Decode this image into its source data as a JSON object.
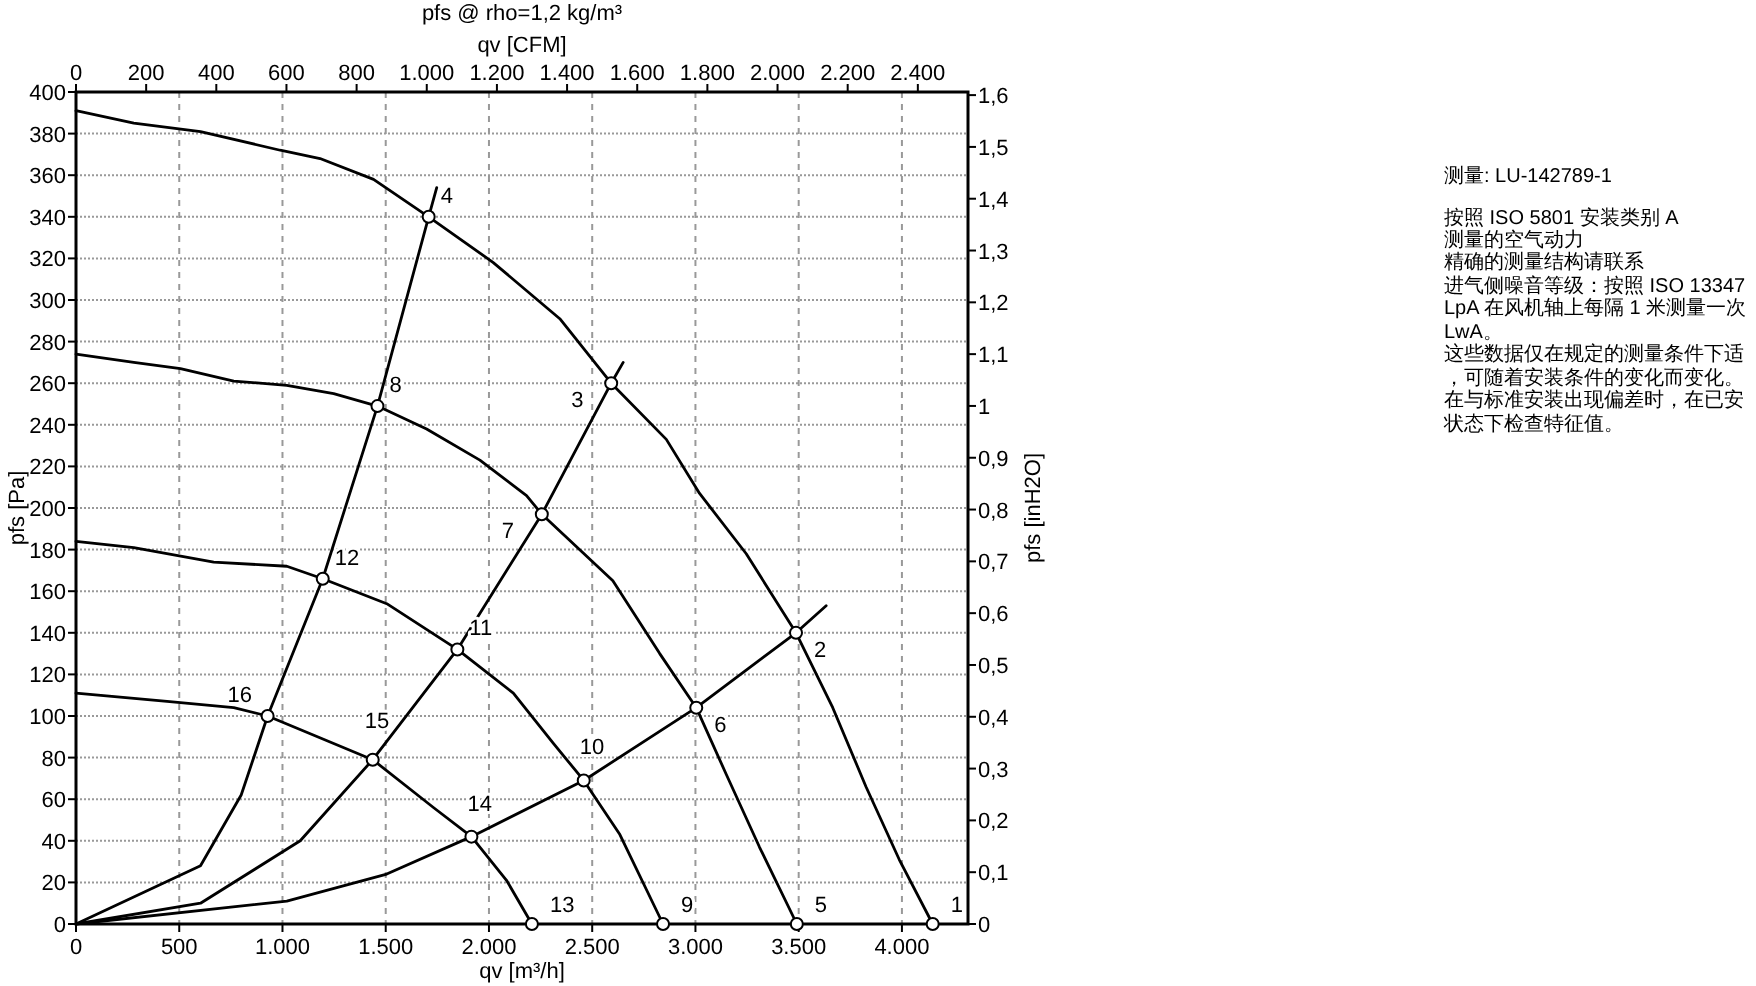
{
  "chart_data": {
    "type": "line",
    "title": "pfs @ rho=1,2 kg/m³",
    "xlabel": "qv [m³/h]",
    "x2label": "qv [CFM]",
    "ylabel": "pfs [Pa]",
    "y2label": "pfs [inH2O]",
    "xlim": [
      0,
      4320
    ],
    "ylim": [
      0,
      400
    ],
    "x2lim": [
      0,
      2543
    ],
    "y2lim": [
      0,
      1.606
    ],
    "xticks": [
      0,
      500,
      {
        "value": 1000,
        "label": "1.000"
      },
      {
        "value": 1500,
        "label": "1.500"
      },
      {
        "value": 2000,
        "label": "2.000"
      },
      {
        "value": 2500,
        "label": "2.500"
      },
      {
        "value": 3000,
        "label": "3.000"
      },
      {
        "value": 3500,
        "label": "3.500"
      },
      {
        "value": 4000,
        "label": "4.000"
      }
    ],
    "x2ticks": [
      0,
      200,
      400,
      600,
      800,
      {
        "value": 1000,
        "label": "1.000"
      },
      {
        "value": 1200,
        "label": "1.200"
      },
      {
        "value": 1400,
        "label": "1.400"
      },
      {
        "value": 1600,
        "label": "1.600"
      },
      {
        "value": 1800,
        "label": "1.800"
      },
      {
        "value": 2000,
        "label": "2.000"
      },
      {
        "value": 2200,
        "label": "2.200"
      },
      {
        "value": 2400,
        "label": "2.400"
      }
    ],
    "yticks": [
      0,
      20,
      40,
      60,
      80,
      100,
      120,
      140,
      160,
      180,
      200,
      220,
      240,
      260,
      280,
      300,
      320,
      340,
      360,
      380,
      400
    ],
    "y2ticks": [
      0,
      {
        "value": 0.1,
        "label": "0,1"
      },
      {
        "value": 0.2,
        "label": "0,2"
      },
      {
        "value": 0.3,
        "label": "0,3"
      },
      {
        "value": 0.4,
        "label": "0,4"
      },
      {
        "value": 0.5,
        "label": "0,5"
      },
      {
        "value": 0.6,
        "label": "0,6"
      },
      {
        "value": 0.7,
        "label": "0,7"
      },
      {
        "value": 0.8,
        "label": "0,8"
      },
      {
        "value": 0.9,
        "label": "0,9"
      },
      1,
      {
        "value": 1.1,
        "label": "1,1"
      },
      {
        "value": 1.2,
        "label": "1,2"
      },
      {
        "value": 1.3,
        "label": "1,3"
      },
      {
        "value": 1.4,
        "label": "1,4"
      },
      {
        "value": 1.5,
        "label": "1,5"
      },
      {
        "value": 1.6,
        "label": "1,6"
      }
    ],
    "grid": true,
    "marker": "none",
    "line_style": "solid",
    "series": [
      {
        "color": "#000000",
        "x": [
          0,
          280,
          603,
          989,
          1182,
          1441,
          1708,
          2021,
          2343,
          2592,
          2859,
          3020,
          3246,
          3487,
          3665,
          3826,
          3987,
          4149
        ],
        "values": [
          391,
          385,
          381,
          372,
          368,
          358,
          340,
          318,
          291,
          260,
          233,
          207,
          178,
          140,
          104,
          66,
          31,
          0
        ]
      },
      {
        "color": "#000000",
        "x": [
          0,
          280,
          506,
          764,
          1021,
          1248,
          1460,
          1698,
          1956,
          2182,
          2256,
          2600,
          2827,
          3004,
          3149,
          3310,
          3491
        ],
        "values": [
          274,
          270,
          267,
          261,
          259,
          255,
          249,
          238,
          223,
          206,
          197,
          165,
          130,
          104,
          72,
          37,
          0
        ]
      },
      {
        "color": "#000000",
        "x": [
          0,
          280,
          667,
          1021,
          1195,
          1505,
          1847,
          2118,
          2311,
          2459,
          2634,
          2843
        ],
        "values": [
          184,
          181,
          174,
          172,
          166,
          154,
          132,
          111,
          87,
          69,
          43,
          0
        ]
      },
      {
        "color": "#000000",
        "x": [
          0,
          441,
          764,
          928,
          1437,
          1731,
          1915,
          2085,
          2208
        ],
        "values": [
          111,
          107,
          104,
          100,
          79,
          56,
          42,
          21,
          0
        ]
      },
      {
        "color": "#000000",
        "x": [
          0,
          603,
          800,
          928,
          1195,
          1460,
          1708,
          1747
        ],
        "values": [
          0,
          28,
          62,
          100,
          166,
          249,
          340,
          354
        ]
      },
      {
        "color": "#000000",
        "x": [
          0,
          603,
          1086,
          1437,
          1847,
          2256,
          2592,
          2650
        ],
        "values": [
          0,
          10,
          40,
          79,
          132,
          197,
          260,
          270
        ]
      },
      {
        "color": "#000000",
        "x": [
          0,
          1021,
          1505,
          1915,
          2459,
          3004,
          3487,
          3633
        ],
        "values": [
          0,
          11,
          24,
          42,
          69,
          104,
          140,
          153
        ]
      },
      {
        "type": "scatter",
        "marker": "circle",
        "color": "#000000",
        "x": [
          4149,
          3487,
          2592,
          1708,
          3491,
          3004,
          2256,
          1460,
          2843,
          2459,
          1847,
          1195,
          2208,
          1915,
          1437,
          928
        ],
        "values": [
          0,
          140,
          260,
          340,
          0,
          104,
          197,
          249,
          0,
          69,
          132,
          166,
          0,
          42,
          79,
          100
        ]
      }
    ],
    "annotations": [
      {
        "text": "1",
        "x": 4149,
        "y": 0
      },
      {
        "text": "2",
        "x": 3487,
        "y": 140
      },
      {
        "text": "3",
        "x": 2592,
        "y": 260
      },
      {
        "text": "4",
        "x": 1708,
        "y": 340
      },
      {
        "text": "5",
        "x": 3491,
        "y": 0
      },
      {
        "text": "6",
        "x": 3004,
        "y": 104
      },
      {
        "text": "7",
        "x": 2256,
        "y": 197
      },
      {
        "text": "8",
        "x": 1460,
        "y": 249
      },
      {
        "text": "9",
        "x": 2843,
        "y": 0
      },
      {
        "text": "10",
        "x": 2459,
        "y": 69
      },
      {
        "text": "11",
        "x": 1847,
        "y": 132
      },
      {
        "text": "12",
        "x": 1195,
        "y": 166
      },
      {
        "text": "13",
        "x": 2208,
        "y": 0
      },
      {
        "text": "14",
        "x": 1915,
        "y": 42
      },
      {
        "text": "15",
        "x": 1437,
        "y": 79
      },
      {
        "text": "16",
        "x": 928,
        "y": 100
      },
      "测量: LU-142789-1",
      "按照 ISO 5801 安装类别 A",
      "测量的空气动力",
      "精确的测量结构请联系",
      "进气侧噪音等级：按照 ISO 13347",
      "LpA 在风机轴上每隔 1 米测量一次",
      "LwA。",
      "这些数据仅在规定的测量条件下适",
      "，可随着安装条件的变化而变化。",
      "在与标准安装出现偏差时，在已安",
      "状态下检查特征值。"
    ]
  }
}
